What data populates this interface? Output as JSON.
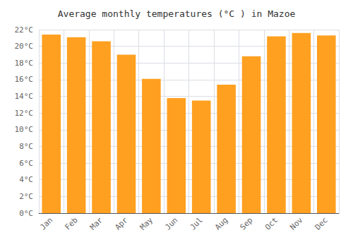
{
  "chart_data": {
    "type": "bar",
    "title": "Average monthly temperatures (°C ) in Mazoe",
    "categories": [
      "Jan",
      "Feb",
      "Mar",
      "Apr",
      "May",
      "Jun",
      "Jul",
      "Aug",
      "Sep",
      "Oct",
      "Nov",
      "Dec"
    ],
    "values": [
      21.4,
      21.1,
      20.6,
      19.0,
      16.1,
      13.8,
      13.5,
      15.4,
      18.8,
      21.2,
      21.6,
      21.3
    ],
    "color": "#FFA020",
    "ylim": [
      0,
      22
    ],
    "yticks": [
      {
        "value": 0,
        "label": "0°C"
      },
      {
        "value": 2,
        "label": "2°C"
      },
      {
        "value": 4,
        "label": "4°C"
      },
      {
        "value": 6,
        "label": "6°C"
      },
      {
        "value": 8,
        "label": "8°C"
      },
      {
        "value": 10,
        "label": "10°C"
      },
      {
        "value": 12,
        "label": "12°C"
      },
      {
        "value": 14,
        "label": "14°C"
      },
      {
        "value": 16,
        "label": "16°C"
      },
      {
        "value": 18,
        "label": "18°C"
      },
      {
        "value": 20,
        "label": "20°C"
      },
      {
        "value": 22,
        "label": "22°C"
      }
    ],
    "grid": true
  }
}
